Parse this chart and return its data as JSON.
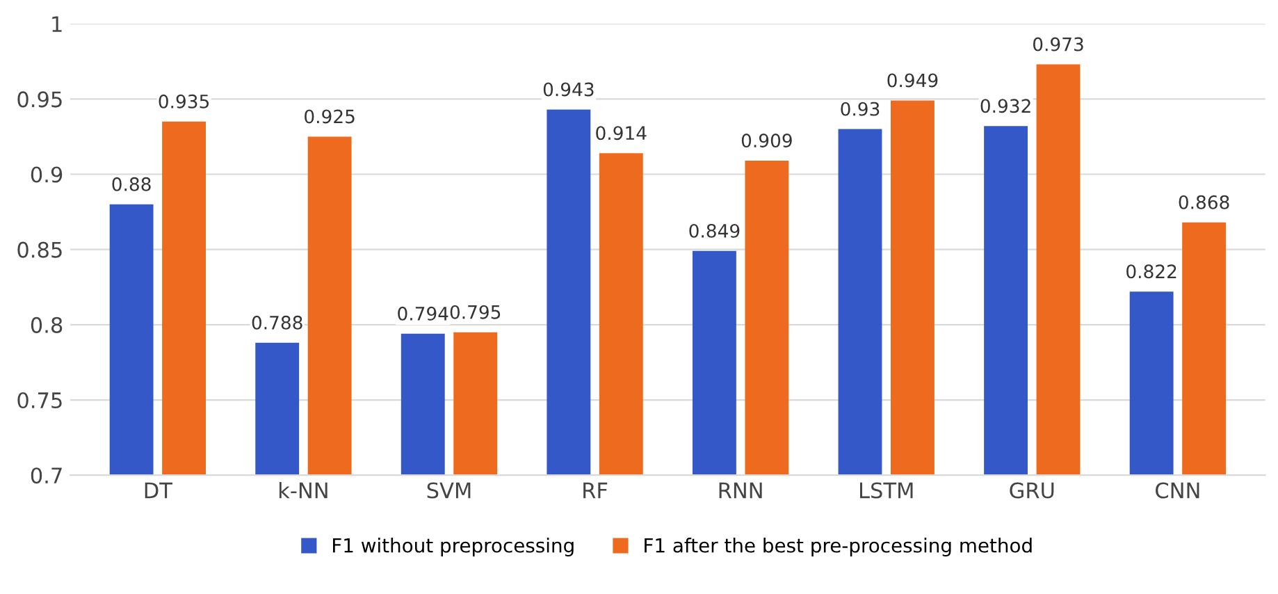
{
  "chart_data": {
    "type": "bar",
    "categories": [
      "DT",
      "k-NN",
      "SVM",
      "RF",
      "RNN",
      "LSTM",
      "GRU",
      "CNN"
    ],
    "series": [
      {
        "name": "F1 without preprocessing",
        "color": "#3558c8",
        "values": [
          0.88,
          0.788,
          0.794,
          0.943,
          0.849,
          0.93,
          0.932,
          0.822
        ]
      },
      {
        "name": "F1 after the best pre-processing method",
        "color": "#ee6a1f",
        "values": [
          0.935,
          0.925,
          0.795,
          0.914,
          0.909,
          0.949,
          0.973,
          0.868
        ]
      }
    ],
    "ylim": [
      0.7,
      1
    ],
    "yticks": [
      0.7,
      0.75,
      0.8,
      0.85,
      0.9,
      0.95,
      1
    ],
    "grid": "y",
    "legend": "bottom",
    "data_labels": true
  }
}
